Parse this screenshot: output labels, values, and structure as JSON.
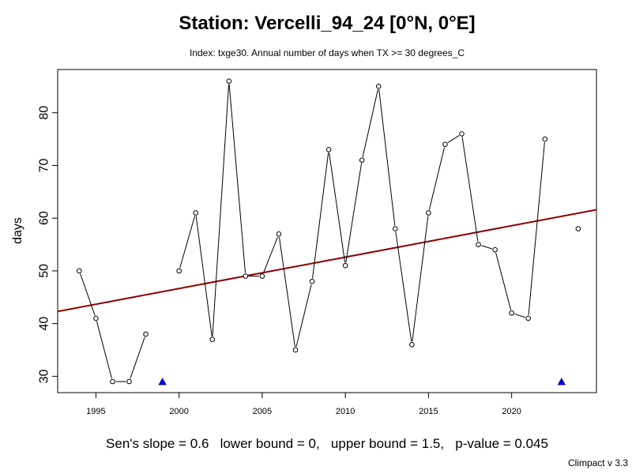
{
  "chart_data": {
    "type": "line",
    "title": "Station: Vercelli_94_24 [0°N, 0°E]",
    "subtitle": "Index: txge30. Annual number of days when TX >= 30 degrees_C",
    "xlabel": "",
    "ylabel": "days",
    "xlim": [
      1992.7,
      2025.1
    ],
    "ylim": [
      26.9,
      88.2
    ],
    "x_ticks": [
      1995,
      2000,
      2005,
      2010,
      2015,
      2020
    ],
    "y_ticks": [
      30,
      40,
      50,
      60,
      70,
      80
    ],
    "grid": false,
    "series": [
      {
        "x": [
          1994,
          1995,
          1996,
          1997,
          1998,
          1999,
          2000,
          2001,
          2002,
          2003,
          2004,
          2005,
          2006,
          2007,
          2008,
          2009,
          2010,
          2011,
          2012,
          2013,
          2014,
          2015,
          2016,
          2017,
          2018,
          2019,
          2020,
          2021,
          2022,
          2023,
          2024
        ],
        "y": [
          50,
          41,
          29,
          29,
          38,
          null,
          50,
          61,
          37,
          86,
          49,
          49,
          57,
          35,
          48,
          73,
          51,
          71,
          85,
          58,
          36,
          61,
          74,
          76,
          55,
          54,
          42,
          41,
          75,
          null,
          58
        ]
      }
    ],
    "missing_markers": [
      1999,
      2023
    ],
    "missing_marker_color": "#0000ff",
    "trend": {
      "slope": 0.6,
      "y_start": 42.3,
      "y_end": 61.6,
      "color": "#8b0000"
    }
  },
  "footer": {
    "stats": "Sen's slope = 0.6   lower bound = 0,   upper bound = 1.5,   p-value = 0.045",
    "credit": "Climpact v 3.3"
  }
}
